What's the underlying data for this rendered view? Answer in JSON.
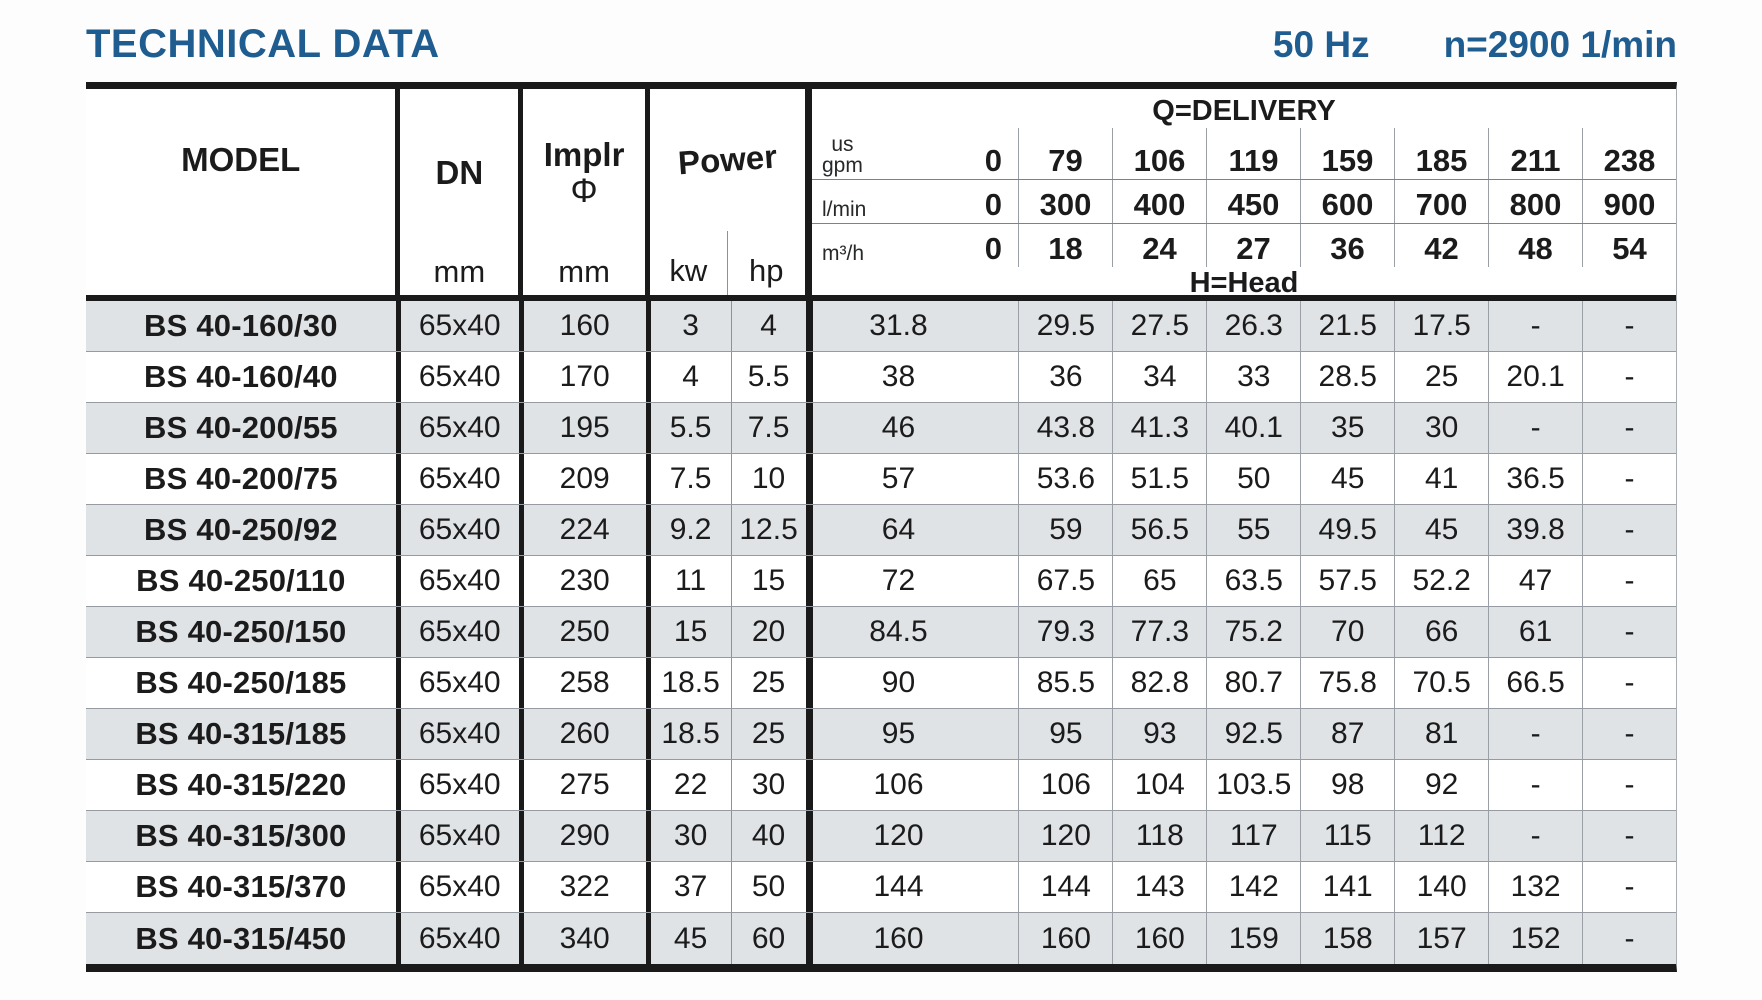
{
  "page": {
    "title": "TECHNICAL DATA",
    "frequency": "50 Hz",
    "speed": "n=2900 1/min"
  },
  "colors": {
    "accent_blue": "#1f5c90",
    "row_stripe": "#dfe3e6"
  },
  "table": {
    "headers": {
      "model": "MODEL",
      "dn": "DN",
      "dn_unit": "mm",
      "impeller_label": "Implr",
      "impeller_symbol": "Φ",
      "impeller_unit": "mm",
      "power": "Power",
      "kw": "kw",
      "hp": "hp",
      "delivery_title": "Q=DELIVERY",
      "head_title": "H=Head"
    },
    "flow_rows": [
      {
        "unit_top": "us",
        "unit": "gpm",
        "values": [
          "0",
          "79",
          "106",
          "119",
          "159",
          "185",
          "211",
          "238"
        ]
      },
      {
        "unit_top": "",
        "unit": "l/min",
        "values": [
          "0",
          "300",
          "400",
          "450",
          "600",
          "700",
          "800",
          "900"
        ]
      },
      {
        "unit_top": "",
        "unit": "m³/h",
        "values": [
          "0",
          "18",
          "24",
          "27",
          "36",
          "42",
          "48",
          "54"
        ]
      }
    ],
    "rows": [
      {
        "model": "BS 40-160/30",
        "dn": "65x40",
        "impeller": "160",
        "kw": "3",
        "hp": "4",
        "head": [
          "31.8",
          "29.5",
          "27.5",
          "26.3",
          "21.5",
          "17.5",
          "-",
          "-"
        ]
      },
      {
        "model": "BS 40-160/40",
        "dn": "65x40",
        "impeller": "170",
        "kw": "4",
        "hp": "5.5",
        "head": [
          "38",
          "36",
          "34",
          "33",
          "28.5",
          "25",
          "20.1",
          "-"
        ]
      },
      {
        "model": "BS 40-200/55",
        "dn": "65x40",
        "impeller": "195",
        "kw": "5.5",
        "hp": "7.5",
        "head": [
          "46",
          "43.8",
          "41.3",
          "40.1",
          "35",
          "30",
          "-",
          "-"
        ]
      },
      {
        "model": "BS 40-200/75",
        "dn": "65x40",
        "impeller": "209",
        "kw": "7.5",
        "hp": "10",
        "head": [
          "57",
          "53.6",
          "51.5",
          "50",
          "45",
          "41",
          "36.5",
          "-"
        ]
      },
      {
        "model": "BS 40-250/92",
        "dn": "65x40",
        "impeller": "224",
        "kw": "9.2",
        "hp": "12.5",
        "head": [
          "64",
          "59",
          "56.5",
          "55",
          "49.5",
          "45",
          "39.8",
          "-"
        ]
      },
      {
        "model": "BS 40-250/110",
        "dn": "65x40",
        "impeller": "230",
        "kw": "11",
        "hp": "15",
        "head": [
          "72",
          "67.5",
          "65",
          "63.5",
          "57.5",
          "52.2",
          "47",
          "-"
        ]
      },
      {
        "model": "BS 40-250/150",
        "dn": "65x40",
        "impeller": "250",
        "kw": "15",
        "hp": "20",
        "head": [
          "84.5",
          "79.3",
          "77.3",
          "75.2",
          "70",
          "66",
          "61",
          "-"
        ]
      },
      {
        "model": "BS 40-250/185",
        "dn": "65x40",
        "impeller": "258",
        "kw": "18.5",
        "hp": "25",
        "head": [
          "90",
          "85.5",
          "82.8",
          "80.7",
          "75.8",
          "70.5",
          "66.5",
          "-"
        ]
      },
      {
        "model": "BS 40-315/185",
        "dn": "65x40",
        "impeller": "260",
        "kw": "18.5",
        "hp": "25",
        "head": [
          "95",
          "95",
          "93",
          "92.5",
          "87",
          "81",
          "-",
          "-"
        ]
      },
      {
        "model": "BS 40-315/220",
        "dn": "65x40",
        "impeller": "275",
        "kw": "22",
        "hp": "30",
        "head": [
          "106",
          "106",
          "104",
          "103.5",
          "98",
          "92",
          "-",
          "-"
        ]
      },
      {
        "model": "BS 40-315/300",
        "dn": "65x40",
        "impeller": "290",
        "kw": "30",
        "hp": "40",
        "head": [
          "120",
          "120",
          "118",
          "117",
          "115",
          "112",
          "-",
          "-"
        ]
      },
      {
        "model": "BS 40-315/370",
        "dn": "65x40",
        "impeller": "322",
        "kw": "37",
        "hp": "50",
        "head": [
          "144",
          "144",
          "143",
          "142",
          "141",
          "140",
          "132",
          "-"
        ]
      },
      {
        "model": "BS 40-315/450",
        "dn": "65x40",
        "impeller": "340",
        "kw": "45",
        "hp": "60",
        "head": [
          "160",
          "160",
          "160",
          "159",
          "158",
          "157",
          "152",
          "-"
        ]
      }
    ]
  }
}
